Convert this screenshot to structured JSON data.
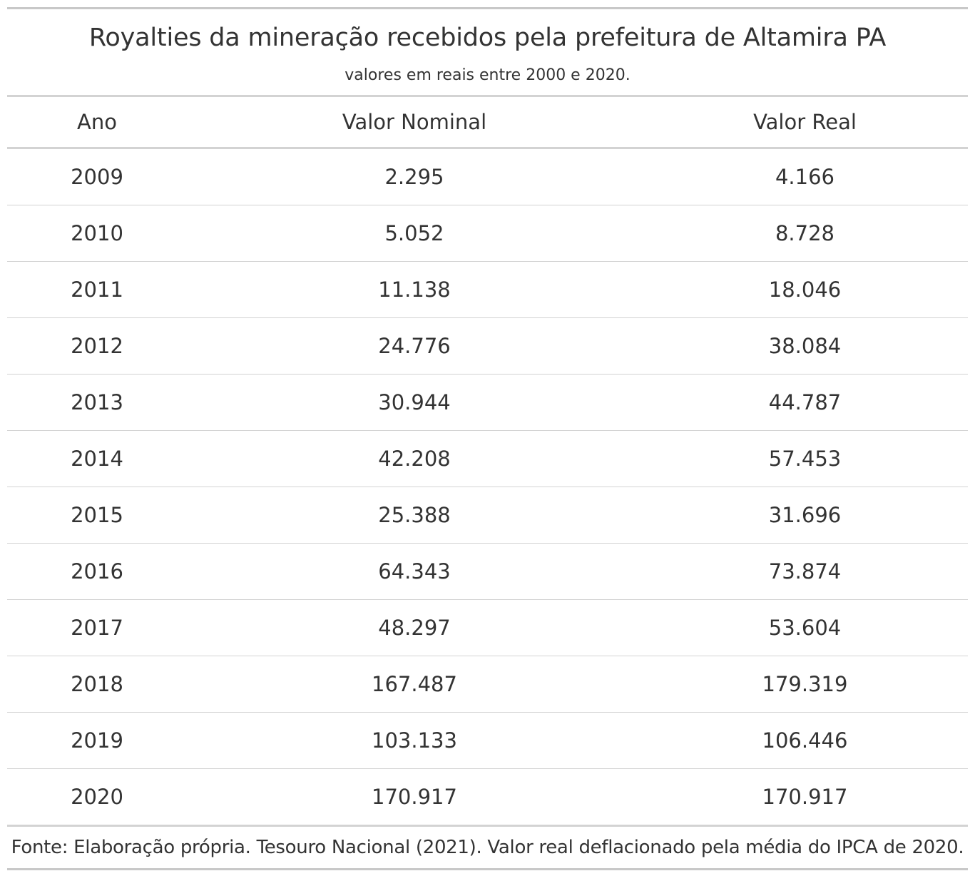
{
  "title": "Royalties da mineração recebidos pela prefeitura de Altamira PA",
  "subtitle": "valores em reais entre 2000 e 2020.",
  "columns": {
    "ano": "Ano",
    "nominal": "Valor Nominal",
    "real": "Valor Real"
  },
  "rows": [
    {
      "ano": "2009",
      "nominal": "2.295",
      "real": "4.166"
    },
    {
      "ano": "2010",
      "nominal": "5.052",
      "real": "8.728"
    },
    {
      "ano": "2011",
      "nominal": "11.138",
      "real": "18.046"
    },
    {
      "ano": "2012",
      "nominal": "24.776",
      "real": "38.084"
    },
    {
      "ano": "2013",
      "nominal": "30.944",
      "real": "44.787"
    },
    {
      "ano": "2014",
      "nominal": "42.208",
      "real": "57.453"
    },
    {
      "ano": "2015",
      "nominal": "25.388",
      "real": "31.696"
    },
    {
      "ano": "2016",
      "nominal": "64.343",
      "real": "73.874"
    },
    {
      "ano": "2017",
      "nominal": "48.297",
      "real": "53.604"
    },
    {
      "ano": "2018",
      "nominal": "167.487",
      "real": "179.319"
    },
    {
      "ano": "2019",
      "nominal": "103.133",
      "real": "106.446"
    },
    {
      "ano": "2020",
      "nominal": "170.917",
      "real": "170.917"
    }
  ],
  "source_note": "Fonte: Elaboração própria. Tesouro Nacional (2021). Valor real deflacionado pela média do IPCA de 2020."
}
